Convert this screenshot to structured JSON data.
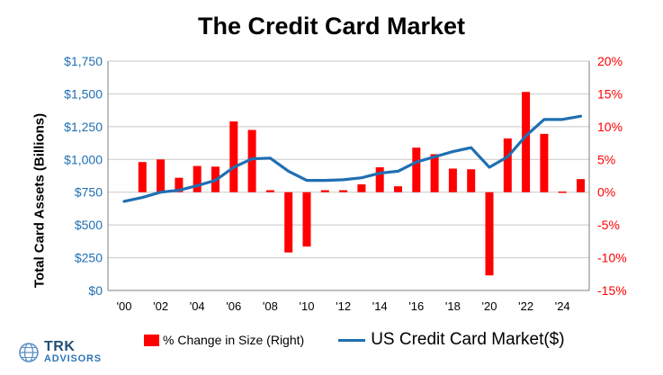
{
  "chart_data": {
    "type": "bar",
    "title": "The Credit Card Market",
    "ylabel": "Total Card Assets (Billions)",
    "y_ticks": [
      "$0",
      "$250",
      "$500",
      "$750",
      "$1,000",
      "$1,250",
      "$1,500",
      "$1,750"
    ],
    "ylim": [
      0,
      1750
    ],
    "y2_ticks": [
      "-15%",
      "-10%",
      "-5%",
      "0%",
      "5%",
      "10%",
      "15%",
      "20%"
    ],
    "y2lim": [
      -15,
      20
    ],
    "x_ticks": [
      "'00",
      "'02",
      "'04",
      "'06",
      "'08",
      "'10",
      "'12",
      "'14",
      "'16",
      "'18",
      "'20",
      "'22",
      "'24"
    ],
    "years": [
      2000,
      2001,
      2002,
      2003,
      2004,
      2005,
      2006,
      2007,
      2008,
      2009,
      2010,
      2011,
      2012,
      2013,
      2014,
      2015,
      2016,
      2017,
      2018,
      2019,
      2020,
      2021,
      2022,
      2023,
      2024,
      2025
    ],
    "grid": true,
    "legend_position": "bottom",
    "series": [
      {
        "name": "% Change in Size (Right)",
        "type": "bar",
        "axis": "right",
        "color": "#ff0000",
        "values": [
          null,
          4.6,
          5.0,
          2.2,
          4.0,
          3.9,
          10.8,
          9.5,
          0.3,
          -9.2,
          -8.3,
          0.3,
          0.3,
          1.2,
          3.8,
          0.9,
          6.8,
          5.8,
          3.6,
          3.5,
          -12.7,
          8.2,
          15.3,
          8.9,
          0.1,
          2.0
        ]
      },
      {
        "name": "US Credit Card Market($)",
        "type": "line",
        "axis": "left",
        "color": "#1f6fb2",
        "values": [
          680,
          710,
          750,
          765,
          800,
          840,
          940,
          1005,
          1010,
          910,
          840,
          840,
          845,
          860,
          895,
          910,
          980,
          1020,
          1060,
          1090,
          940,
          1020,
          1180,
          1305,
          1305,
          1330
        ]
      }
    ]
  },
  "logo": {
    "name": "TRK",
    "sub": "ADVISORS"
  }
}
